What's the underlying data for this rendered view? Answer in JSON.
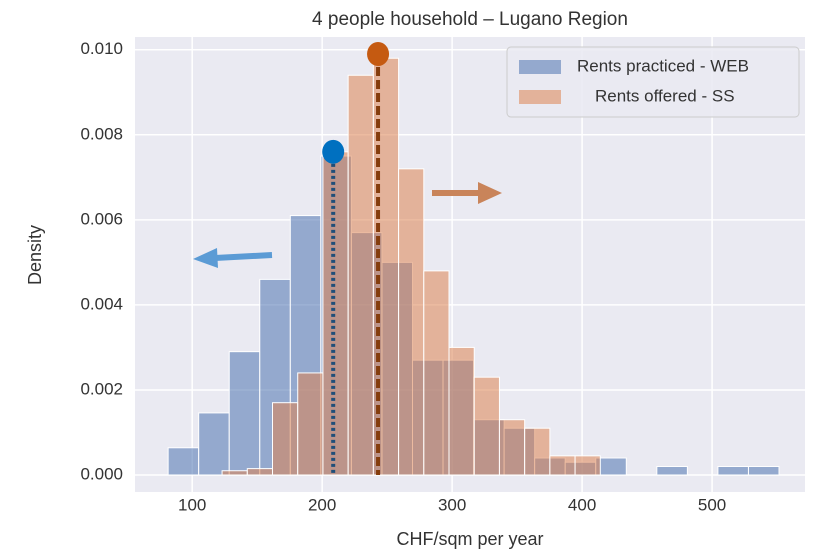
{
  "chart_data": {
    "type": "histogram",
    "title": "4 people household – Lugano Region",
    "xlabel": "CHF/sqm per year",
    "ylabel": "Density",
    "xlim": [
      56,
      571.5
    ],
    "ylim": [
      -0.0004,
      0.0103
    ],
    "xticks": [
      100,
      200,
      300,
      400,
      500
    ],
    "yticks": [
      {
        "value": 0,
        "label": "0.000"
      },
      {
        "value": 0.002,
        "label": "0.002"
      },
      {
        "value": 0.004,
        "label": "0.004"
      },
      {
        "value": 0.006,
        "label": "0.006"
      },
      {
        "value": 0.008,
        "label": "0.008"
      },
      {
        "value": 0.01,
        "label": "0.010"
      }
    ],
    "grid": true,
    "legend": "upper right",
    "series": [
      {
        "name": "Rents practiced - WEB",
        "color": "#4c72b0",
        "bins": [
          81.5,
          105,
          128.5,
          152,
          175.5,
          199,
          222.5,
          246,
          269.5,
          293,
          316.5,
          340,
          363.5,
          387,
          410.5,
          434,
          457.5,
          481,
          504.5,
          528,
          551.5
        ],
        "values": [
          0.00064,
          0.00146,
          0.0029,
          0.0046,
          0.0061,
          0.0075,
          0.0057,
          0.005,
          0.0027,
          0.0027,
          0.0013,
          0.0011,
          0.0004,
          0.0003,
          0.0004,
          0,
          0.0002,
          0,
          0.0002,
          0.0002
        ]
      },
      {
        "name": "Rents offered - SS",
        "color": "#dd8452",
        "bins": [
          123,
          142.4,
          161.8,
          181.2,
          200.6,
          220,
          239.4,
          258.8,
          278.2,
          297.6,
          317,
          336.4,
          355.8,
          375.2,
          394.6,
          414
        ],
        "values": [
          0.0001,
          0.00015,
          0.0017,
          0.0024,
          0.0076,
          0.0094,
          0.0098,
          0.0072,
          0.0048,
          0.003,
          0.0023,
          0.0013,
          0.0011,
          0.00045,
          0.00045
        ]
      }
    ],
    "markers": [
      {
        "x": 208.5,
        "y": 0.0076,
        "color": "#0070c0",
        "line_color": "#1f4e79",
        "style": "dotted"
      },
      {
        "x": 243,
        "y": 0.0099,
        "color": "#c55a11",
        "line_color": "#843c0c",
        "style": "dashed"
      }
    ]
  }
}
